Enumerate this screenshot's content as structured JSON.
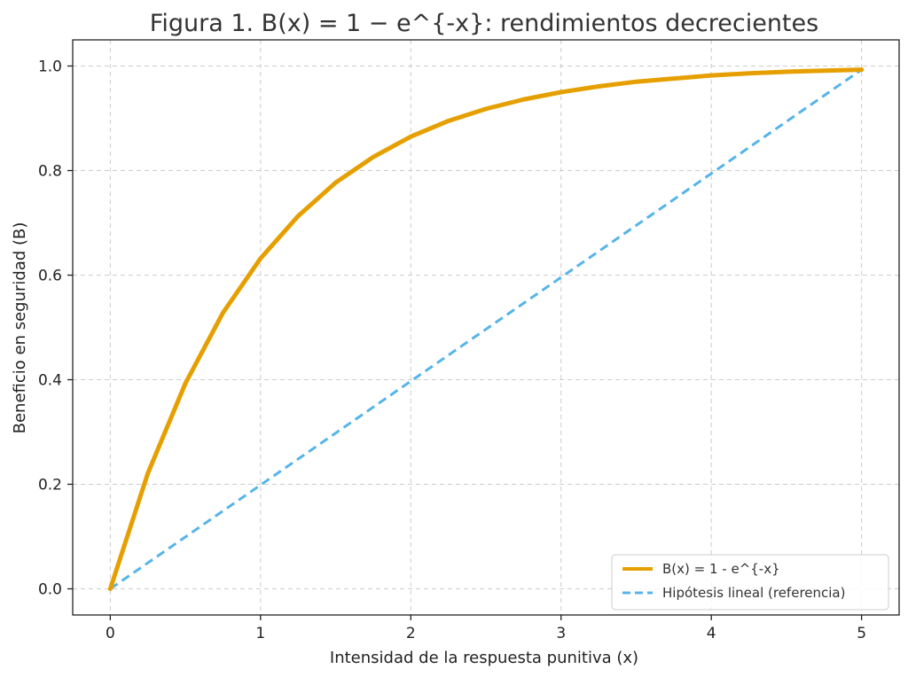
{
  "chart_data": {
    "type": "line",
    "title": "Figura 1. B(x) = 1 − e^{-x}: rendimientos decrecientes",
    "xlabel": "Intensidad de la respuesta punitiva (x)",
    "ylabel": "Beneficio en seguridad (B)",
    "xlim": [
      -0.25,
      5.25
    ],
    "ylim": [
      -0.05,
      1.05
    ],
    "xticks": [
      0,
      1,
      2,
      3,
      4,
      5
    ],
    "yticks": [
      0.0,
      0.2,
      0.4,
      0.6,
      0.8,
      1.0
    ],
    "xtick_labels": [
      "0",
      "1",
      "2",
      "3",
      "4",
      "5"
    ],
    "ytick_labels": [
      "0.0",
      "0.2",
      "0.4",
      "0.6",
      "0.8",
      "1.0"
    ],
    "grid": true,
    "legend_position": "bottom-right",
    "series": [
      {
        "name": "B(x) = 1 - e^{-x}",
        "color": "#E69F00",
        "style": "solid",
        "x": [
          0,
          0.25,
          0.5,
          0.75,
          1,
          1.25,
          1.5,
          1.75,
          2,
          2.25,
          2.5,
          2.75,
          3,
          3.25,
          3.5,
          3.75,
          4,
          4.25,
          4.5,
          4.75,
          5
        ],
        "y": [
          0,
          0.221,
          0.393,
          0.528,
          0.632,
          0.713,
          0.777,
          0.826,
          0.865,
          0.895,
          0.918,
          0.936,
          0.95,
          0.961,
          0.97,
          0.976,
          0.982,
          0.986,
          0.989,
          0.991,
          0.993
        ]
      },
      {
        "name": "Hipótesis lineal (referencia)",
        "color": "#56B4E9",
        "style": "dashed",
        "x": [
          0,
          5
        ],
        "y": [
          0,
          0.993
        ]
      }
    ]
  }
}
